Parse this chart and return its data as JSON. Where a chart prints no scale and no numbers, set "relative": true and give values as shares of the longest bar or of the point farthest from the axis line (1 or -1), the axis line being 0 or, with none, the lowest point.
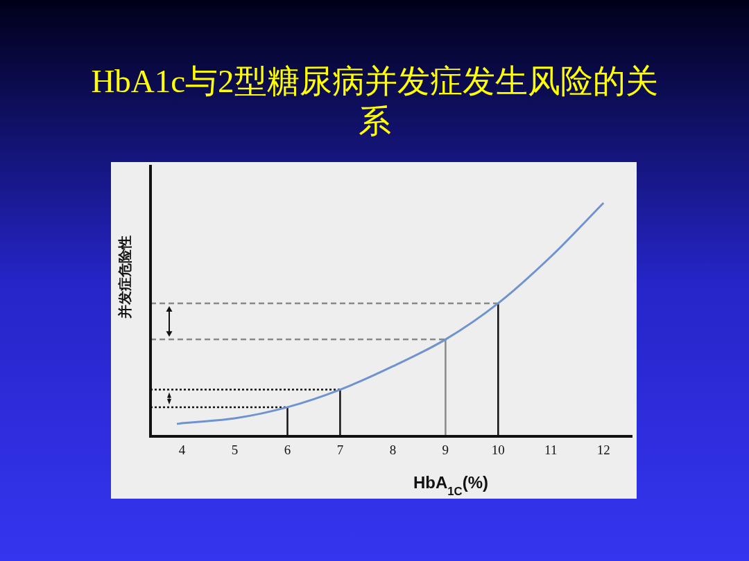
{
  "chart_data": {
    "type": "line",
    "title": "HbA1c与2型糖尿病并发症发生风险的关系",
    "xlabel": "HbA$_{1C}$(%)",
    "ylabel": "并发症危险性",
    "relative": true,
    "xlim": [
      3.4,
      12.55
    ],
    "xticks": [
      4,
      5,
      6,
      7,
      8,
      9,
      10,
      11,
      12
    ],
    "grid": false,
    "series": [
      {
        "color": "#6f93d0",
        "x": [
          3.9,
          4,
          5,
          6,
          7,
          8,
          9,
          10,
          11,
          12
        ],
        "values": [
          0.053,
          0.056,
          0.077,
          0.125,
          0.2,
          0.3,
          0.415,
          0.57,
          0.77,
          1
        ]
      },
      {
        "color": "#111111",
        "line_style": "solid",
        "x": [
          6,
          6
        ],
        "values": [
          0,
          0.125
        ]
      },
      {
        "color": "#111111",
        "line_style": "solid",
        "x": [
          7,
          7
        ],
        "values": [
          0,
          0.2
        ]
      },
      {
        "color": "#888888",
        "line_style": "solid",
        "x": [
          9,
          9
        ],
        "values": [
          0,
          0.415
        ]
      },
      {
        "color": "#111111",
        "line_style": "solid",
        "x": [
          10,
          10
        ],
        "values": [
          0,
          0.57
        ]
      },
      {
        "color": "#111111",
        "line_style": "dotted",
        "x": [
          3.4,
          6
        ],
        "values": [
          0.125,
          0.125
        ]
      },
      {
        "color": "#111111",
        "line_style": "dotted",
        "x": [
          3.4,
          7
        ],
        "values": [
          0.2,
          0.2
        ]
      },
      {
        "color": "#888888",
        "line_style": "dashed",
        "x": [
          3.4,
          9
        ],
        "values": [
          0.415,
          0.415
        ]
      },
      {
        "color": "#888888",
        "line_style": "dashed",
        "x": [
          3.4,
          10
        ],
        "values": [
          0.57,
          0.57
        ]
      }
    ]
  }
}
